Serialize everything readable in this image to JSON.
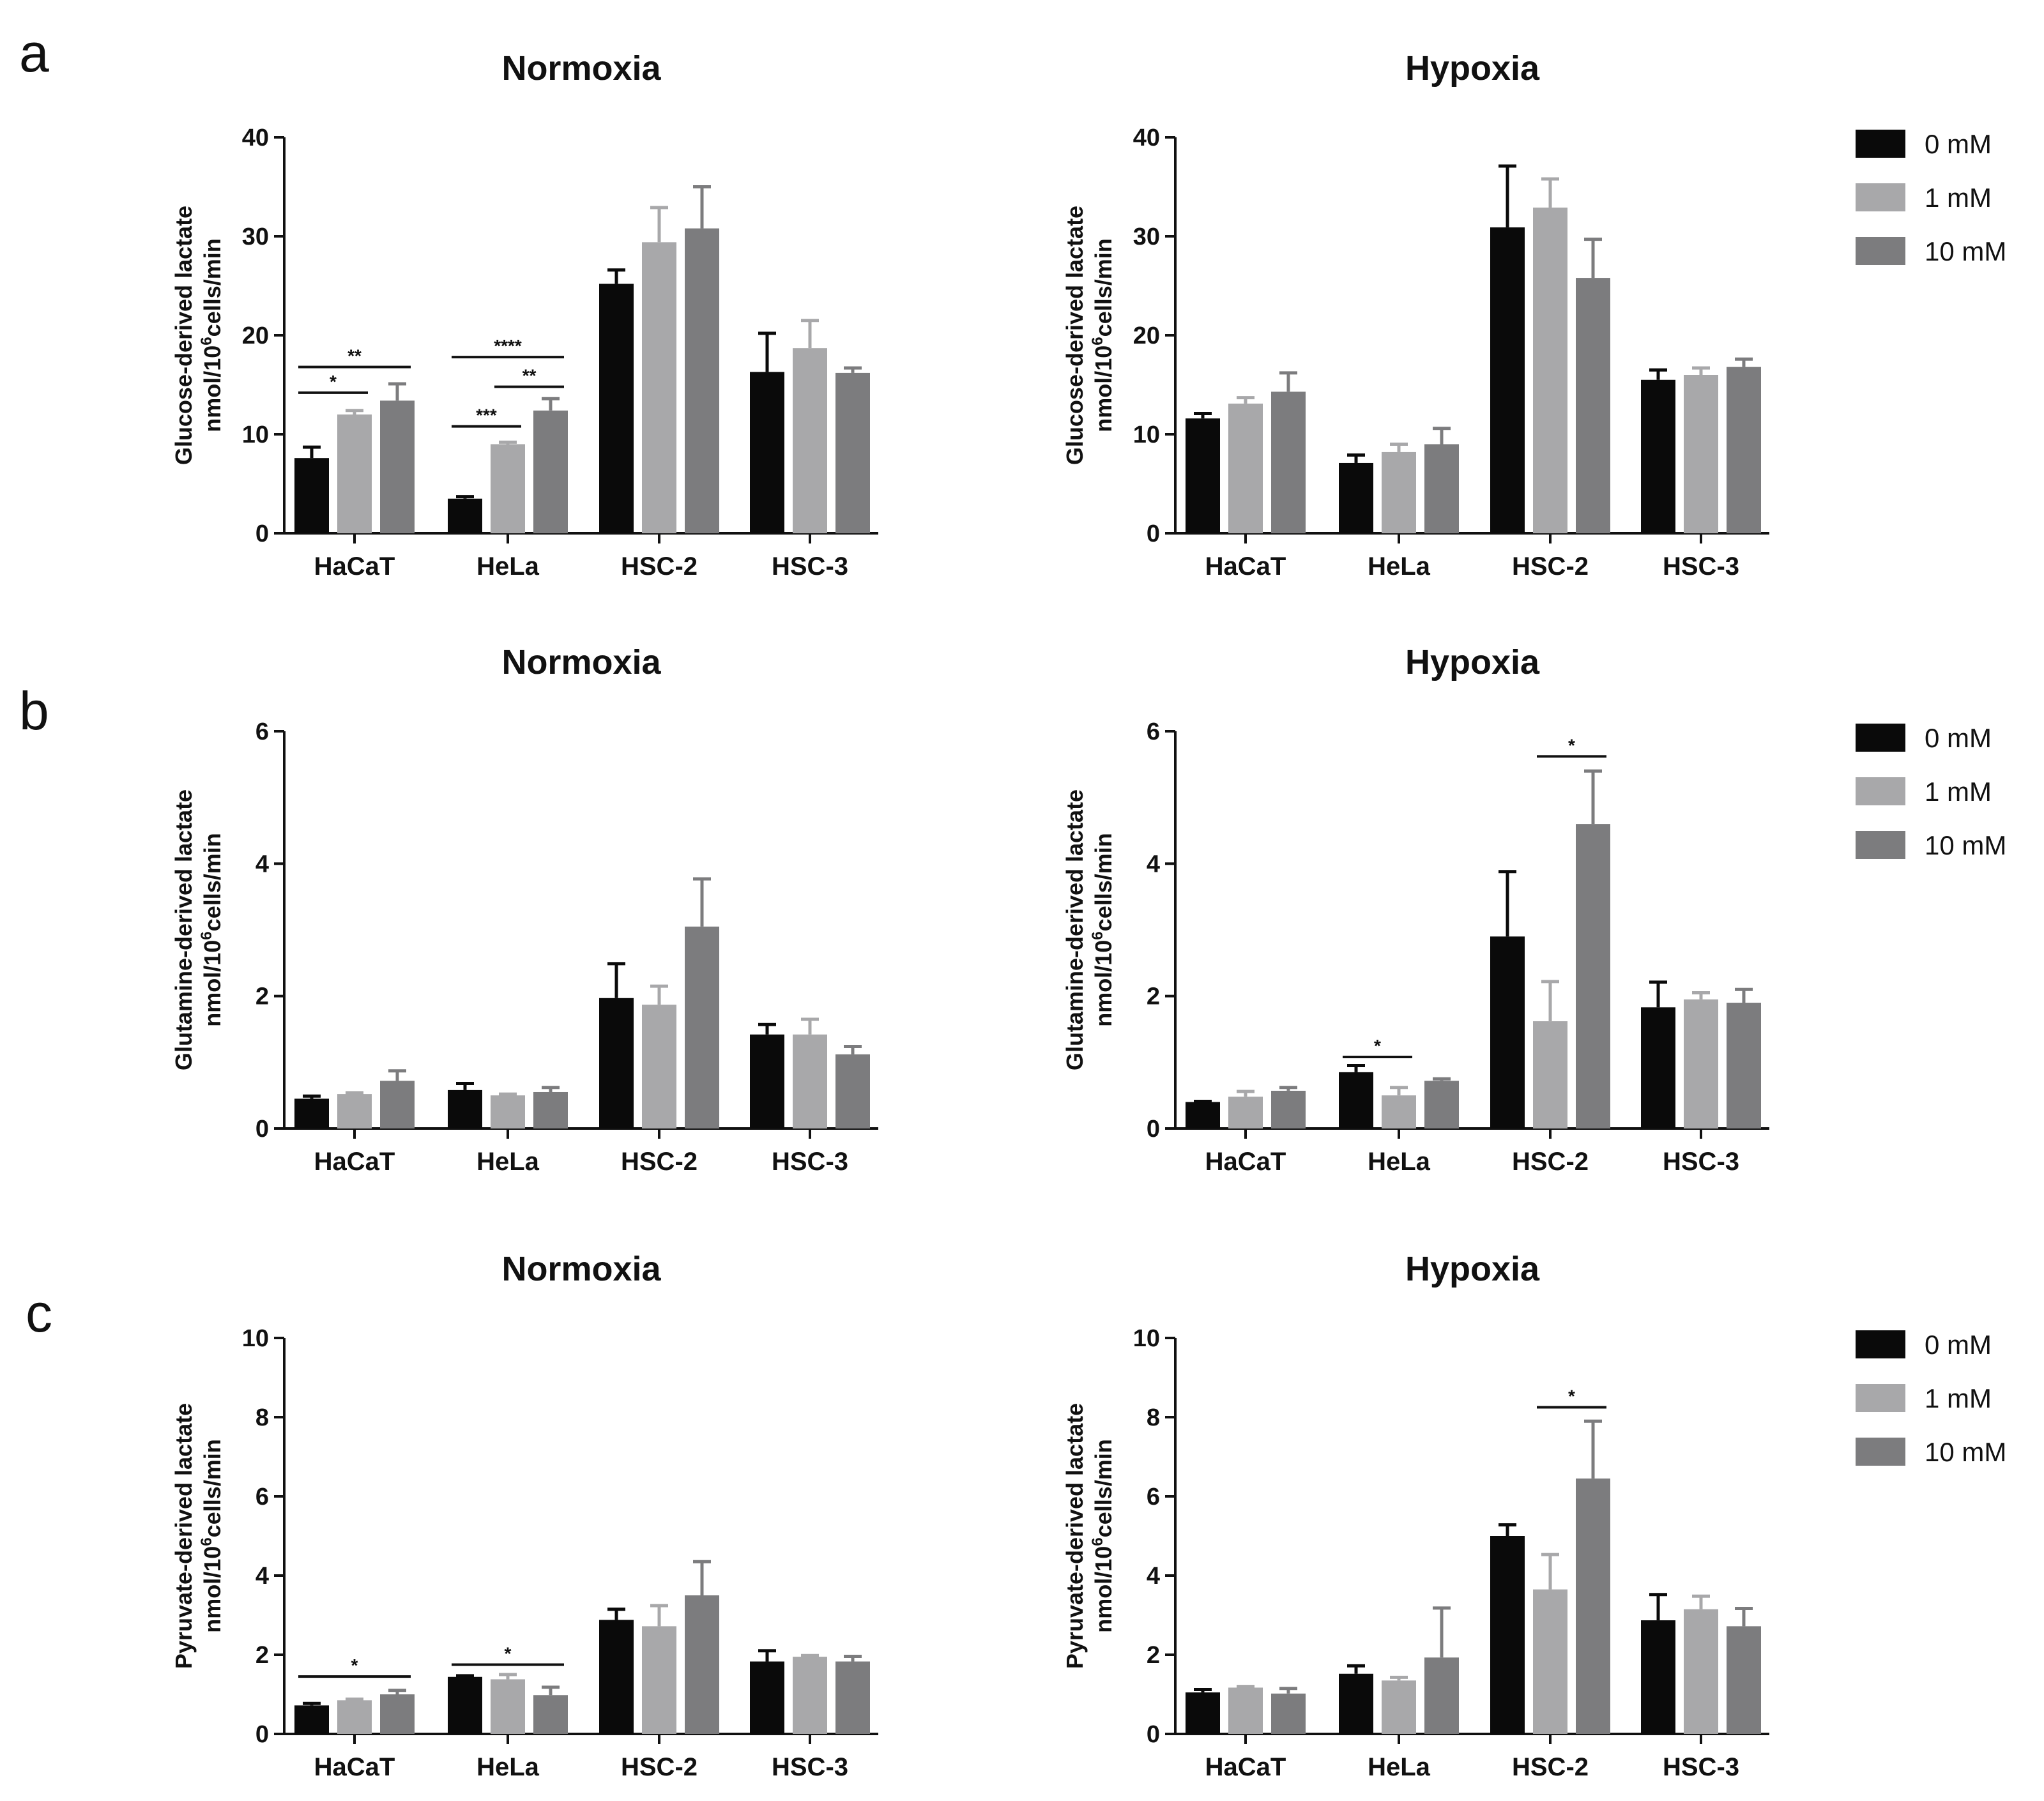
{
  "panel_letters": [
    "a",
    "b",
    "c"
  ],
  "legend": {
    "items": [
      {
        "label": "0 mM",
        "color": "#0a0a0a"
      },
      {
        "label": "1 mM",
        "color": "#a8a8aa"
      },
      {
        "label": "10 mM",
        "color": "#7c7c7e"
      }
    ]
  },
  "chart_data": [
    {
      "type": "bar",
      "panel": "a",
      "title": "Normoxia",
      "ylabel_line1": "Glucose-derived lactate",
      "ylabel_line2_pre": "nmol/10",
      "ylabel_line2_sup": "6",
      "ylabel_line2_post": "cells/min",
      "categories": [
        "HaCaT",
        "HeLa",
        "HSC-2",
        "HSC-3"
      ],
      "ylim": [
        0,
        40
      ],
      "yticks": [
        0,
        10,
        20,
        30,
        40
      ],
      "series": [
        {
          "name": "0 mM",
          "values": [
            7.6,
            3.5,
            25.2,
            16.3
          ],
          "errors": [
            1.1,
            0.2,
            1.4,
            3.9
          ]
        },
        {
          "name": "1 mM",
          "values": [
            12.0,
            9.0,
            29.4,
            18.7
          ],
          "errors": [
            0.4,
            0.2,
            3.5,
            2.8
          ]
        },
        {
          "name": "10 mM",
          "values": [
            13.4,
            12.4,
            30.8,
            16.2
          ],
          "errors": [
            1.7,
            1.2,
            4.2,
            0.5
          ]
        }
      ],
      "significance": [
        {
          "category": 0,
          "from": 0,
          "to": 1,
          "y": 14.2,
          "label": "*"
        },
        {
          "category": 0,
          "from": 0,
          "to": 2,
          "y": 16.8,
          "label": "**"
        },
        {
          "category": 1,
          "from": 0,
          "to": 1,
          "y": 10.8,
          "label": "***"
        },
        {
          "category": 1,
          "from": 1,
          "to": 2,
          "y": 14.8,
          "label": "**"
        },
        {
          "category": 1,
          "from": 0,
          "to": 2,
          "y": 17.8,
          "label": "****"
        }
      ]
    },
    {
      "type": "bar",
      "panel": "a",
      "title": "Hypoxia",
      "ylabel_line1": "Glucose-derived lactate",
      "ylabel_line2_pre": "nmol/10",
      "ylabel_line2_sup": "6",
      "ylabel_line2_post": "cells/min",
      "categories": [
        "HaCaT",
        "HeLa",
        "HSC-2",
        "HSC-3"
      ],
      "ylim": [
        0,
        40
      ],
      "yticks": [
        0,
        10,
        20,
        30,
        40
      ],
      "series": [
        {
          "name": "0 mM",
          "values": [
            11.6,
            7.1,
            30.9,
            15.5
          ],
          "errors": [
            0.5,
            0.8,
            6.2,
            1.0
          ]
        },
        {
          "name": "1 mM",
          "values": [
            13.1,
            8.2,
            32.9,
            16.0
          ],
          "errors": [
            0.6,
            0.8,
            2.9,
            0.7
          ]
        },
        {
          "name": "10 mM",
          "values": [
            14.3,
            9.0,
            25.8,
            16.8
          ],
          "errors": [
            1.9,
            1.6,
            3.9,
            0.8
          ]
        }
      ],
      "significance": []
    },
    {
      "type": "bar",
      "panel": "b",
      "title": "Normoxia",
      "ylabel_line1": "Glutamine-derived lactate",
      "ylabel_line2_pre": "nmol/10",
      "ylabel_line2_sup": "6",
      "ylabel_line2_post": "cells/min",
      "categories": [
        "HaCaT",
        "HeLa",
        "HSC-2",
        "HSC-3"
      ],
      "ylim": [
        0,
        6
      ],
      "yticks": [
        0,
        2,
        4,
        6
      ],
      "series": [
        {
          "name": "0 mM",
          "values": [
            0.45,
            0.58,
            1.97,
            1.42
          ],
          "errors": [
            0.04,
            0.1,
            0.52,
            0.15
          ]
        },
        {
          "name": "1 mM",
          "values": [
            0.52,
            0.5,
            1.87,
            1.42
          ],
          "errors": [
            0.02,
            0.02,
            0.28,
            0.23
          ]
        },
        {
          "name": "10 mM",
          "values": [
            0.72,
            0.55,
            3.05,
            1.12
          ],
          "errors": [
            0.15,
            0.07,
            0.72,
            0.12
          ]
        }
      ],
      "significance": []
    },
    {
      "type": "bar",
      "panel": "b",
      "title": "Hypoxia",
      "ylabel_line1": "Glutamine-derived lactate",
      "ylabel_line2_pre": "nmol/10",
      "ylabel_line2_sup": "6",
      "ylabel_line2_post": "cells/min",
      "categories": [
        "HaCaT",
        "HeLa",
        "HSC-2",
        "HSC-3"
      ],
      "ylim": [
        0,
        6
      ],
      "yticks": [
        0,
        2,
        4,
        6
      ],
      "series": [
        {
          "name": "0 mM",
          "values": [
            0.4,
            0.85,
            2.9,
            1.83
          ],
          "errors": [
            0.01,
            0.1,
            0.98,
            0.38
          ]
        },
        {
          "name": "1 mM",
          "values": [
            0.48,
            0.5,
            1.62,
            1.95
          ],
          "errors": [
            0.08,
            0.12,
            0.6,
            0.1
          ]
        },
        {
          "name": "10 mM",
          "values": [
            0.57,
            0.72,
            4.6,
            1.9
          ],
          "errors": [
            0.05,
            0.03,
            0.8,
            0.2
          ]
        }
      ],
      "significance": [
        {
          "category": 1,
          "from": 0,
          "to": 1,
          "y": 1.08,
          "label": "*"
        },
        {
          "category": 2,
          "from": 1,
          "to": 2,
          "y": 5.62,
          "label": "*"
        }
      ]
    },
    {
      "type": "bar",
      "panel": "c",
      "title": "Normoxia",
      "ylabel_line1": "Pyruvate-derived lactate",
      "ylabel_line2_pre": "nmol/10",
      "ylabel_line2_sup": "6",
      "ylabel_line2_post": "cells/min",
      "categories": [
        "HaCaT",
        "HeLa",
        "HSC-2",
        "HSC-3"
      ],
      "ylim": [
        0,
        10
      ],
      "yticks": [
        0,
        2,
        4,
        6,
        8,
        10
      ],
      "series": [
        {
          "name": "0 mM",
          "values": [
            0.72,
            1.44,
            2.88,
            1.83
          ],
          "errors": [
            0.05,
            0.03,
            0.27,
            0.27
          ]
        },
        {
          "name": "1 mM",
          "values": [
            0.85,
            1.38,
            2.72,
            1.95
          ],
          "errors": [
            0.03,
            0.12,
            0.52,
            0.03
          ]
        },
        {
          "name": "10 mM",
          "values": [
            1.0,
            0.98,
            3.5,
            1.83
          ],
          "errors": [
            0.1,
            0.2,
            0.85,
            0.13
          ]
        }
      ],
      "significance": [
        {
          "category": 0,
          "from": 0,
          "to": 2,
          "y": 1.45,
          "label": "*"
        },
        {
          "category": 1,
          "from": 0,
          "to": 2,
          "y": 1.75,
          "label": "*"
        }
      ]
    },
    {
      "type": "bar",
      "panel": "c",
      "title": "Hypoxia",
      "ylabel_line1": "Pyruvate-derived lactate",
      "ylabel_line2_pre": "nmol/10",
      "ylabel_line2_sup": "6",
      "ylabel_line2_post": "cells/min",
      "categories": [
        "HaCaT",
        "HeLa",
        "HSC-2",
        "HSC-3"
      ],
      "ylim": [
        0,
        10
      ],
      "yticks": [
        0,
        2,
        4,
        6,
        8,
        10
      ],
      "series": [
        {
          "name": "0 mM",
          "values": [
            1.05,
            1.52,
            5.0,
            2.87
          ],
          "errors": [
            0.07,
            0.2,
            0.28,
            0.65
          ]
        },
        {
          "name": "1 mM",
          "values": [
            1.17,
            1.35,
            3.65,
            3.15
          ],
          "errors": [
            0.03,
            0.08,
            0.88,
            0.33
          ]
        },
        {
          "name": "10 mM",
          "values": [
            1.02,
            1.93,
            6.45,
            2.72
          ],
          "errors": [
            0.13,
            1.25,
            1.45,
            0.45
          ]
        }
      ],
      "significance": [
        {
          "category": 2,
          "from": 1,
          "to": 2,
          "y": 8.25,
          "label": "*"
        }
      ]
    }
  ]
}
